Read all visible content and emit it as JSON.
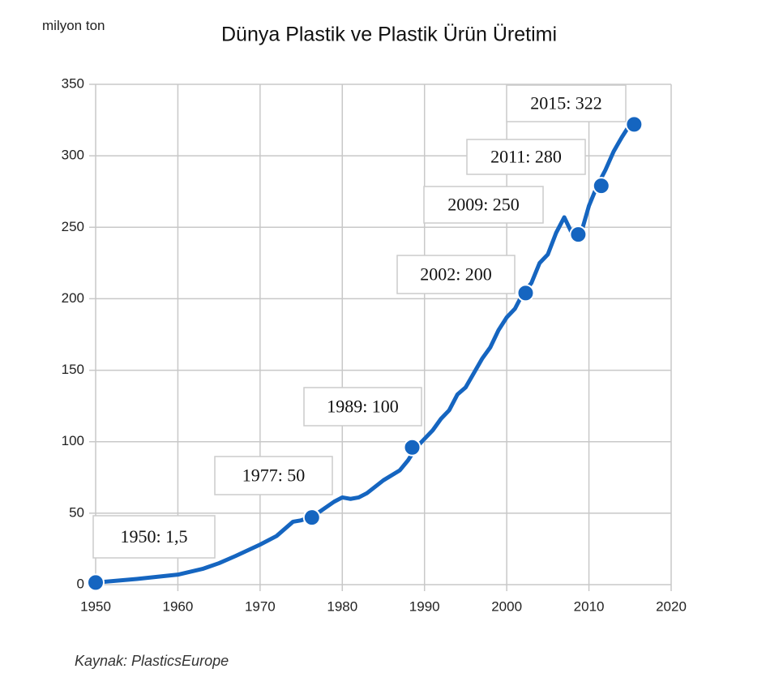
{
  "chart_data": {
    "type": "line",
    "title": "Dünya Plastik ve Plastik Ürün Üretimi",
    "y_label": "milyon ton",
    "source": "Kaynak: PlasticsEurope",
    "x": [
      1950,
      1955,
      1960,
      1963,
      1965,
      1967,
      1970,
      1972,
      1974,
      1975,
      1976,
      1977,
      1979,
      1980,
      1981,
      1982,
      1983,
      1985,
      1987,
      1988,
      1989,
      1990,
      1991,
      1992,
      1993,
      1994,
      1995,
      1996,
      1997,
      1998,
      1999,
      2000,
      2001,
      2002,
      2003,
      2004,
      2005,
      2006,
      2007,
      2008,
      2009,
      2010,
      2011,
      2012,
      2013,
      2014,
      2015
    ],
    "values": [
      1.5,
      4,
      7,
      11,
      15,
      20,
      28,
      34,
      44,
      45,
      47,
      50,
      58,
      61,
      60,
      61,
      64,
      73,
      80,
      87,
      96,
      102,
      108,
      116,
      122,
      133,
      138,
      148,
      158,
      166,
      178,
      187,
      193,
      204,
      211,
      225,
      231,
      246,
      257,
      245,
      245,
      265,
      279,
      290,
      303,
      313,
      322
    ],
    "color": "#1565c0",
    "points": {
      "x": [
        1950,
        1976.3,
        1988.5,
        2002.3,
        2008.7,
        2011.5,
        2015.5
      ],
      "values": [
        1.5,
        47,
        96,
        204,
        245,
        279,
        322
      ]
    },
    "annotations": [
      "1950: 1,5",
      "1977: 50",
      "1989: 100",
      "2002: 200",
      "2009: 250",
      "2011: 280",
      "2015: 322"
    ],
    "xlim": [
      1950,
      2020
    ],
    "xticks": [
      1950,
      1960,
      1970,
      1980,
      1990,
      2000,
      2010,
      2020
    ],
    "ylim": [
      0,
      350
    ],
    "yticks": [
      0,
      50,
      100,
      150,
      200,
      250,
      300,
      350
    ],
    "grid": true
  }
}
